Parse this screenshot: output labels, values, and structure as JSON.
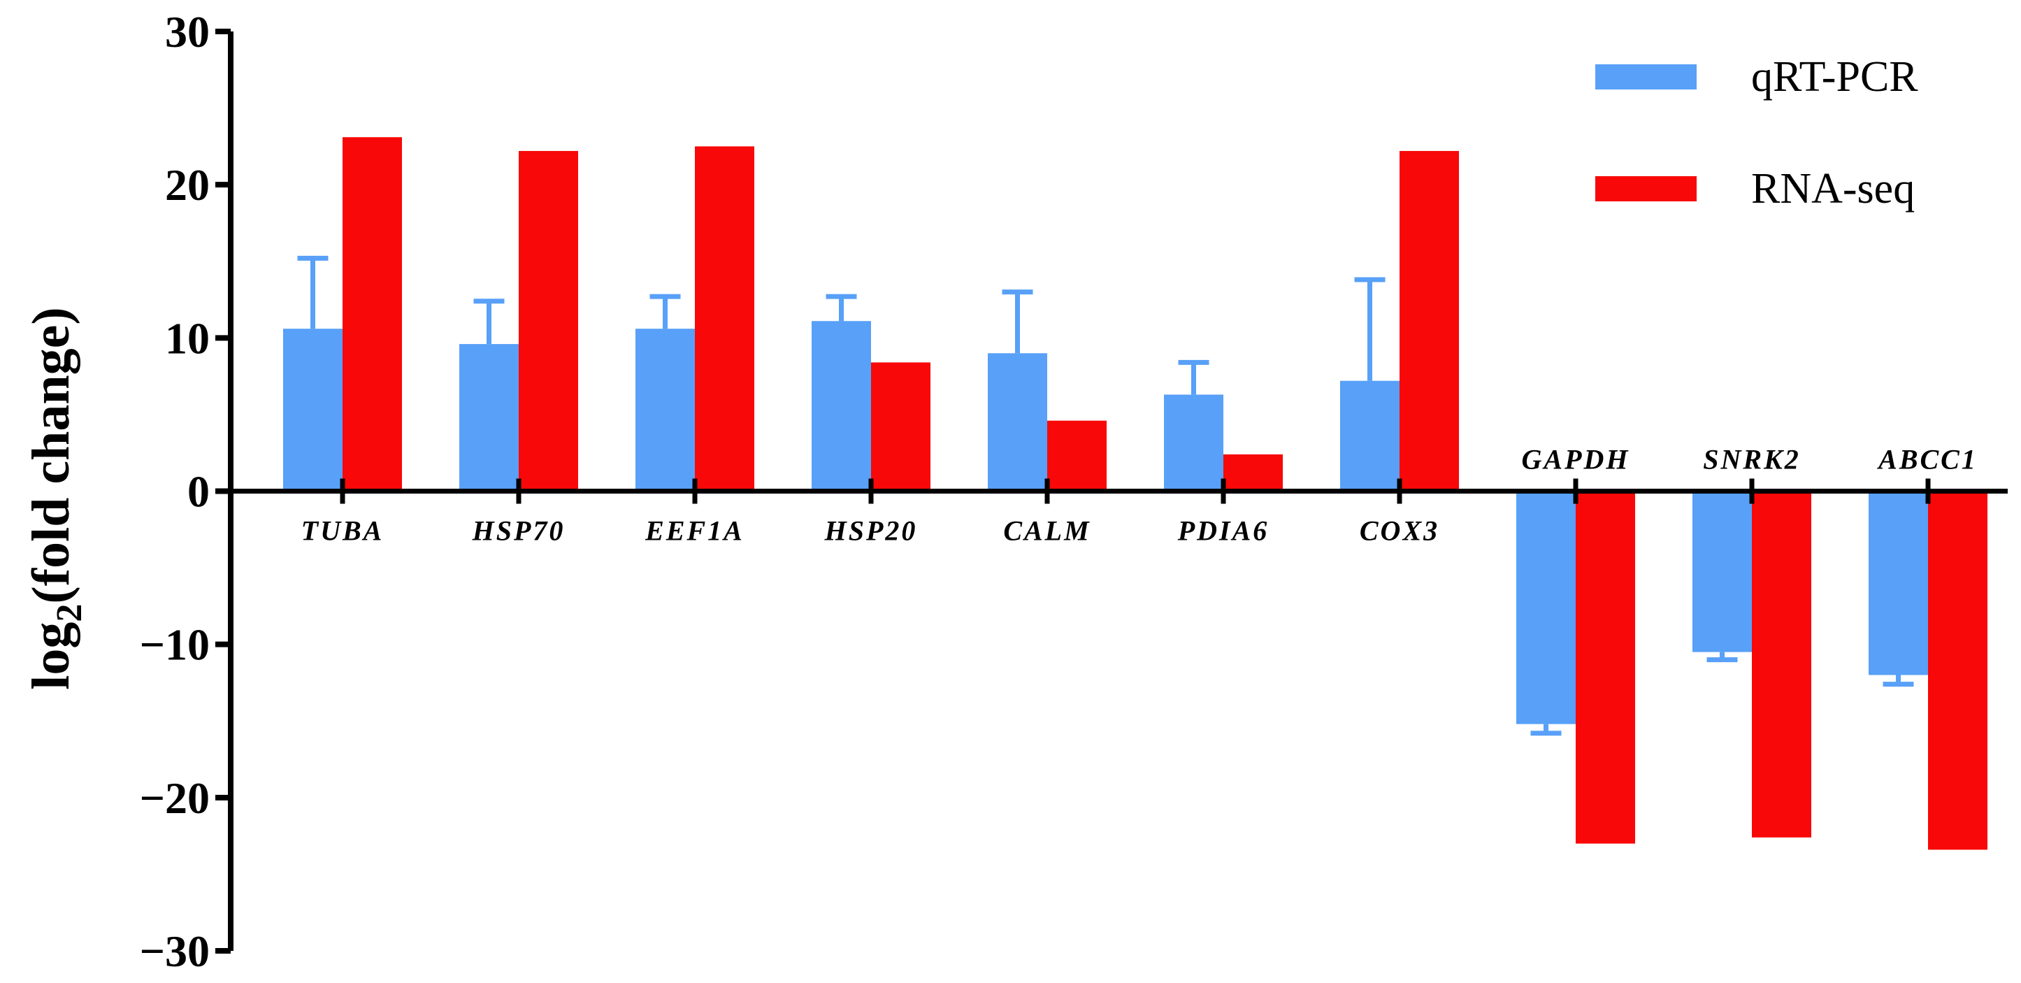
{
  "chart_data": {
    "type": "bar",
    "title": "",
    "xlabel": "",
    "ylabel": {
      "main": "log",
      "subscript": "2",
      "suffix": "(fold change)"
    },
    "ylim": [
      -30,
      30
    ],
    "yticks": [
      30,
      20,
      10,
      0,
      -10,
      -20,
      -30
    ],
    "ytick_labels": [
      "30",
      "20",
      "10",
      "0",
      "−10",
      "−20",
      "−30"
    ],
    "grid": false,
    "legend_position": "top-right",
    "categories": [
      "TUBA",
      "HSP70",
      "EEF1A",
      "HSP20",
      "CALM",
      "PDIA6",
      "COX3",
      "GAPDH",
      "SNRK2",
      "ABCC1"
    ],
    "series": [
      {
        "name": "qRT-PCR",
        "color": "#58a0f8",
        "values": [
          10.6,
          9.6,
          10.6,
          11.1,
          9.0,
          6.3,
          7.2,
          -15.2,
          -10.5,
          -12.0
        ],
        "error": [
          4.6,
          2.8,
          2.1,
          1.6,
          4.0,
          2.1,
          6.6,
          0.6,
          0.5,
          0.6
        ]
      },
      {
        "name": "RNA-seq",
        "color": "#f80808",
        "values": [
          23.1,
          22.2,
          22.5,
          8.4,
          4.6,
          2.4,
          22.2,
          -23.0,
          -22.6,
          -23.4
        ]
      }
    ]
  }
}
